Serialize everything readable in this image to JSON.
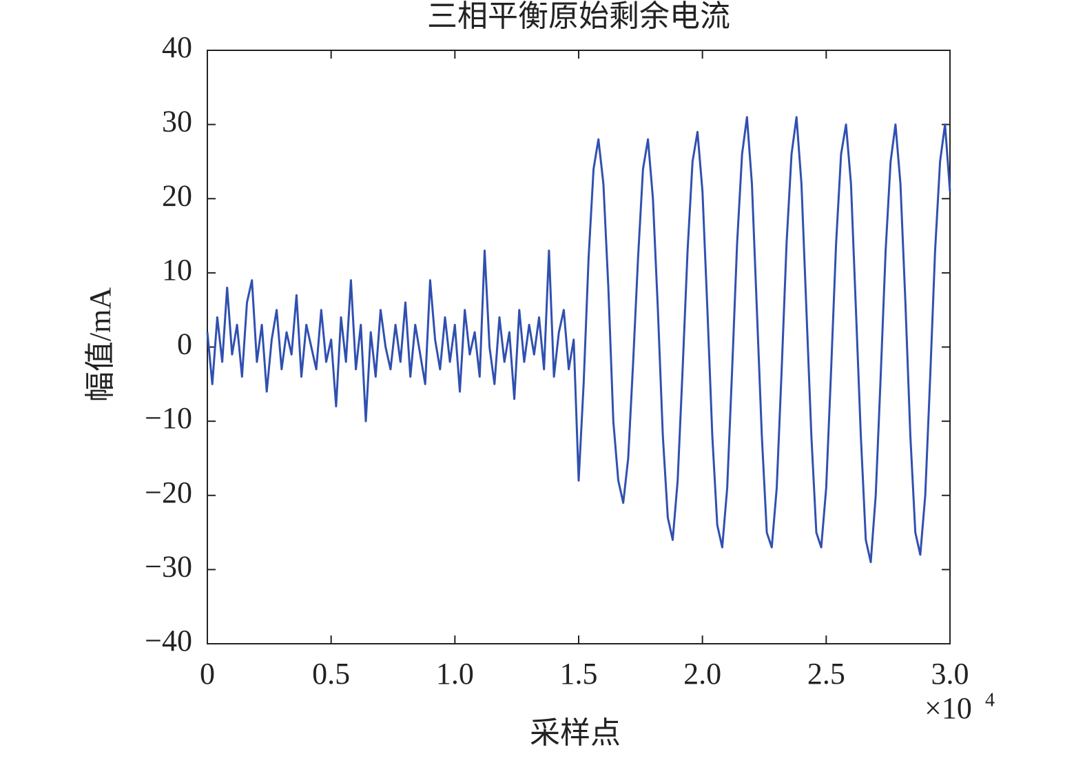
{
  "chart_data": {
    "type": "line",
    "title": "三相平衡原始剩余电流",
    "x_label": "采样点",
    "y_label": "幅值/mA",
    "x_multiplier": {
      "base": "×10",
      "exponent": "4"
    },
    "xlim": [
      0,
      3
    ],
    "ylim": [
      -40,
      40
    ],
    "xticks": [
      0,
      0.5,
      {
        "value": 1,
        "label": "1.0"
      },
      1.5,
      {
        "value": 2,
        "label": "2.0"
      },
      2.5,
      {
        "value": 3,
        "label": "3.0"
      }
    ],
    "yticks": [
      {
        "value": -40,
        "label": "−40"
      },
      {
        "value": -30,
        "label": "−30"
      },
      {
        "value": -20,
        "label": "−20"
      },
      {
        "value": -10,
        "label": "−10"
      },
      0,
      10,
      20,
      30,
      40
    ],
    "x": [
      0,
      0.02,
      0.04,
      0.06,
      0.08,
      0.1,
      0.12,
      0.14,
      0.16,
      0.18,
      0.2,
      0.22,
      0.24,
      0.26,
      0.28,
      0.3,
      0.32,
      0.34,
      0.36,
      0.38,
      0.4,
      0.42,
      0.44,
      0.46,
      0.48,
      0.5,
      0.52,
      0.54,
      0.56,
      0.58,
      0.6,
      0.62,
      0.64,
      0.66,
      0.68,
      0.7,
      0.72,
      0.74,
      0.76,
      0.78,
      0.8,
      0.82,
      0.84,
      0.86,
      0.88,
      0.9,
      0.92,
      0.94,
      0.96,
      0.98,
      1.0,
      1.02,
      1.04,
      1.06,
      1.08,
      1.1,
      1.12,
      1.14,
      1.16,
      1.18,
      1.2,
      1.22,
      1.24,
      1.26,
      1.28,
      1.3,
      1.32,
      1.34,
      1.36,
      1.38,
      1.4,
      1.42,
      1.44,
      1.46,
      1.48,
      1.5,
      1.52,
      1.54,
      1.56,
      1.58,
      1.6,
      1.62,
      1.64,
      1.66,
      1.68,
      1.7,
      1.72,
      1.74,
      1.76,
      1.78,
      1.8,
      1.82,
      1.84,
      1.86,
      1.88,
      1.9,
      1.92,
      1.94,
      1.96,
      1.98,
      2.0,
      2.02,
      2.04,
      2.06,
      2.08,
      2.1,
      2.12,
      2.14,
      2.16,
      2.18,
      2.2,
      2.22,
      2.24,
      2.26,
      2.28,
      2.3,
      2.32,
      2.34,
      2.36,
      2.38,
      2.4,
      2.42,
      2.44,
      2.46,
      2.48,
      2.5,
      2.52,
      2.54,
      2.56,
      2.58,
      2.6,
      2.62,
      2.64,
      2.66,
      2.68,
      2.7,
      2.72,
      2.74,
      2.76,
      2.78,
      2.8,
      2.82,
      2.84,
      2.86,
      2.88,
      2.9,
      2.92,
      2.94,
      2.96,
      2.98,
      3.0
    ],
    "series": [
      {
        "color": "#3050b0",
        "values": [
          2,
          -5,
          4,
          -2,
          8,
          -1,
          3,
          -4,
          6,
          9,
          -2,
          3,
          -6,
          1,
          5,
          -3,
          2,
          -1,
          7,
          -4,
          3,
          0,
          -3,
          5,
          -2,
          1,
          -8,
          4,
          -2,
          9,
          -3,
          3,
          -10,
          2,
          -4,
          5,
          0,
          -3,
          3,
          -2,
          6,
          -4,
          3,
          -1,
          -5,
          9,
          1,
          -3,
          4,
          -2,
          3,
          -6,
          5,
          -1,
          2,
          -4,
          13,
          0,
          -5,
          4,
          -2,
          2,
          -7,
          5,
          -2,
          3,
          -1,
          4,
          -3,
          13,
          -4,
          2,
          5,
          -3,
          1,
          -18,
          -5,
          12,
          24,
          28,
          22,
          8,
          -10,
          -18,
          -21,
          -15,
          -2,
          12,
          24,
          28,
          20,
          5,
          -12,
          -23,
          -26,
          -18,
          -3,
          13,
          25,
          29,
          21,
          5,
          -12,
          -24,
          -27,
          -19,
          -3,
          14,
          26,
          31,
          22,
          5,
          -12,
          -25,
          -27,
          -19,
          -3,
          14,
          26,
          31,
          22,
          5,
          -12,
          -25,
          -27,
          -19,
          -3,
          14,
          26,
          30,
          22,
          5,
          -12,
          -26,
          -29,
          -20,
          -4,
          13,
          25,
          30,
          22,
          6,
          -12,
          -25,
          -28,
          -20,
          -4,
          13,
          25,
          30,
          21
        ]
      }
    ]
  }
}
